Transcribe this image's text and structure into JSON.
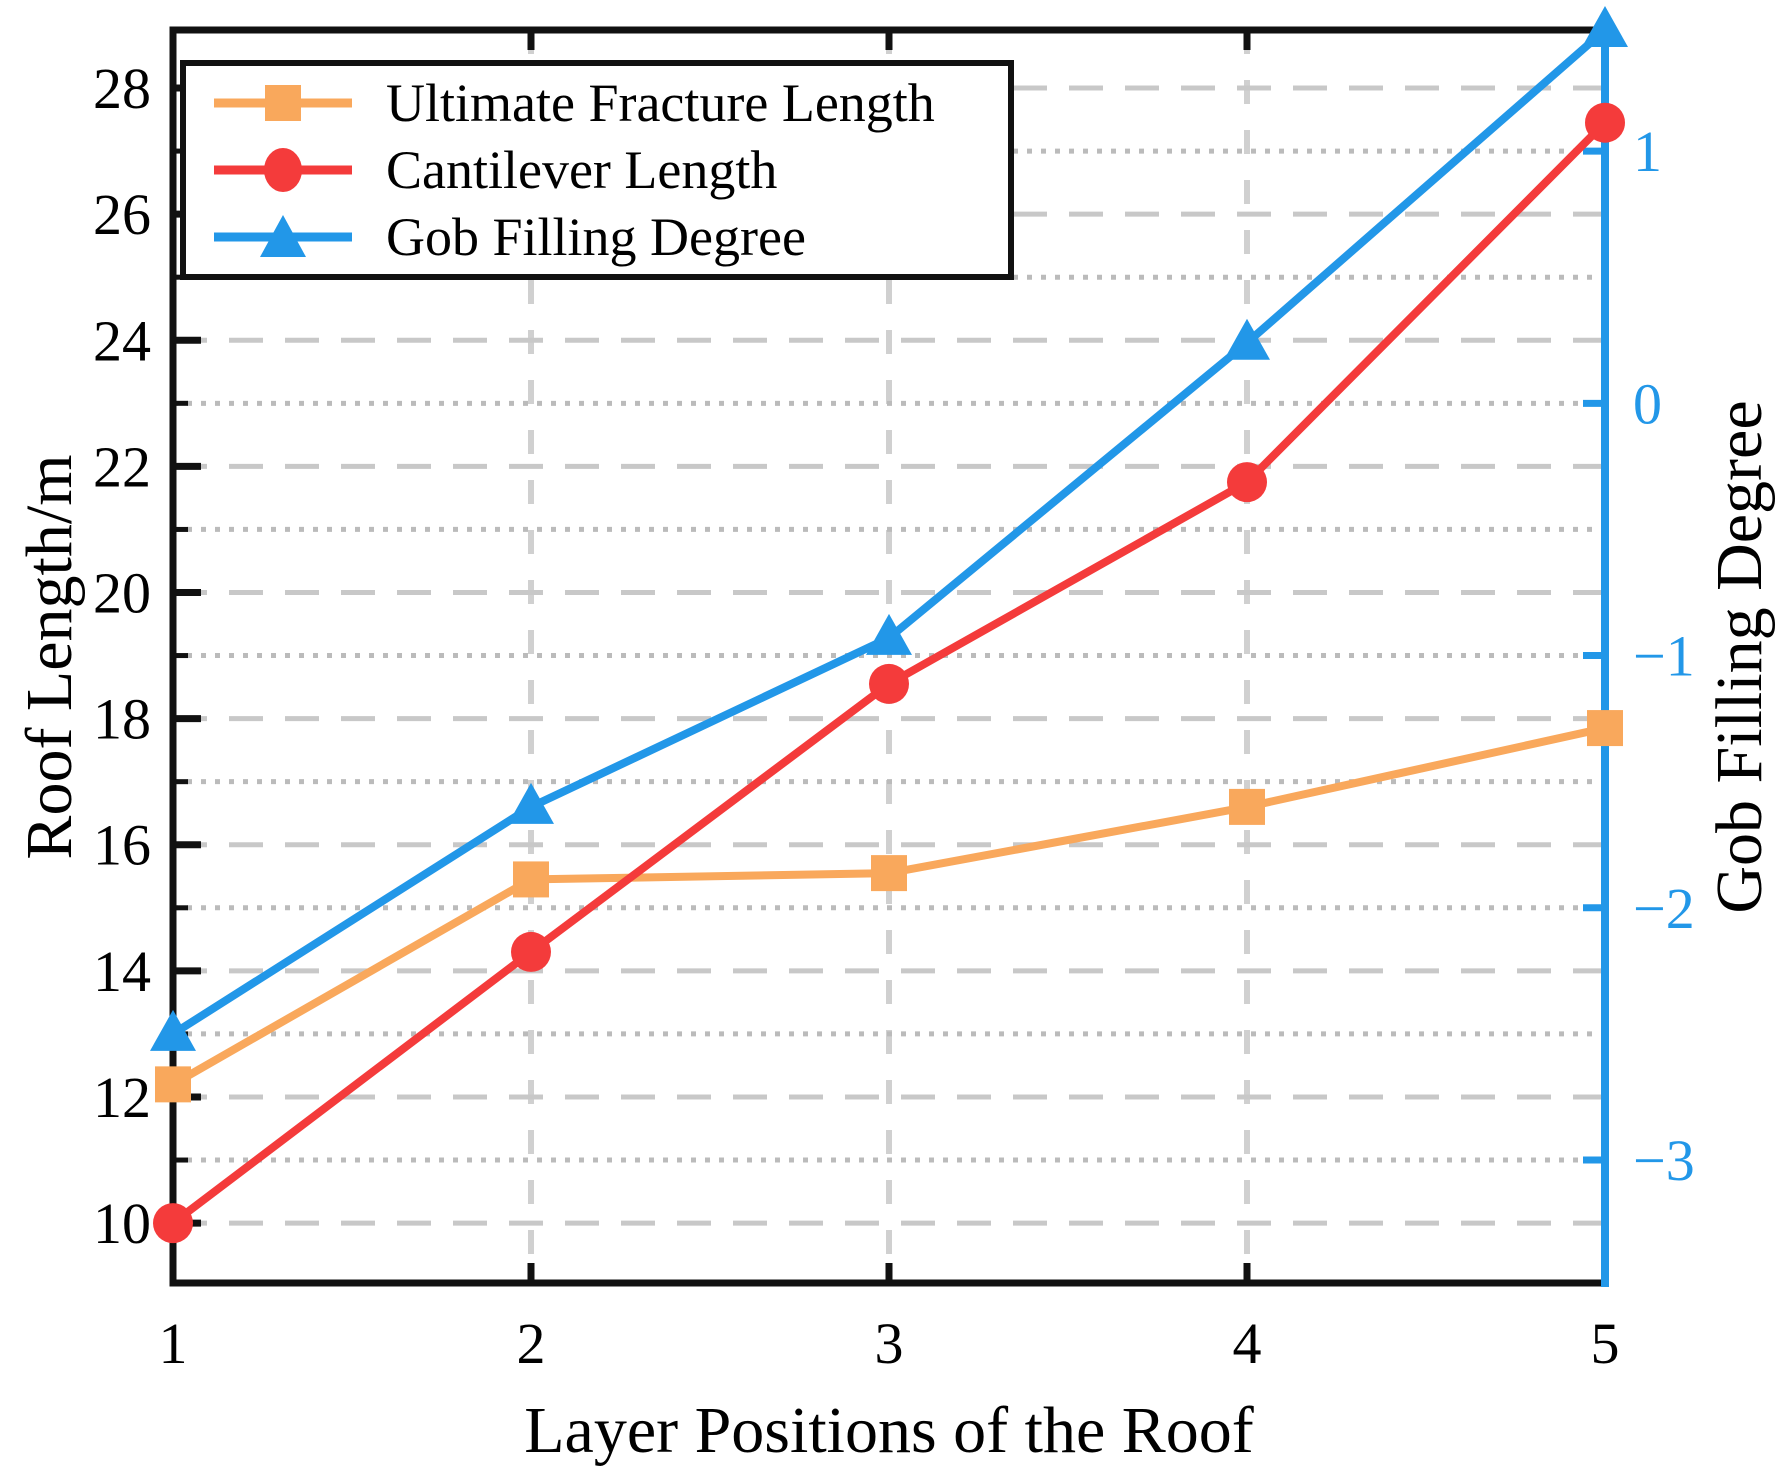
{
  "chart_data": {
    "type": "line",
    "x": [
      1,
      2,
      3,
      4,
      5
    ],
    "x_axis": {
      "label": "Layer Positions of the Roof",
      "ticks": [
        1,
        2,
        3,
        4,
        5
      ],
      "gridline_x": [
        2,
        3,
        4
      ]
    },
    "y_left": {
      "label": "Roof Length/m",
      "range": [
        9.05,
        28.92
      ],
      "major_ticks": [
        10,
        12,
        14,
        16,
        18,
        20,
        22,
        24,
        26,
        28
      ],
      "minor_ticks": [
        11,
        13,
        15,
        17,
        19,
        21,
        23,
        25,
        27
      ]
    },
    "y_right": {
      "label": "Gob Filling Degree",
      "tick_values": [
        1,
        0,
        -1,
        -2,
        -3
      ],
      "tick_labels": [
        "1",
        "0",
        "−1",
        "−2",
        "−3"
      ],
      "left_equiv_offset": 23,
      "left_equiv_scale": 4,
      "axis_color": "#2297E8"
    },
    "series": [
      {
        "name": "Ultimate Fracture Length",
        "axis": "left",
        "marker": "square",
        "color": "#F9A85C",
        "values": [
          12.2,
          15.45,
          15.55,
          16.6,
          17.85
        ]
      },
      {
        "name": "Cantilever Length",
        "axis": "left",
        "marker": "circle",
        "color": "#F43B3B",
        "values": [
          10.0,
          14.3,
          18.55,
          21.75,
          27.45
        ]
      },
      {
        "name": "Gob Filling Degree",
        "axis": "right",
        "marker": "triangle",
        "color": "#2297E8",
        "values": [
          -2.5,
          -1.6,
          -0.93,
          0.24,
          1.48
        ]
      }
    ],
    "grid": {
      "dashed_color": "#C8C8C8",
      "dotted_color": "#BBBBBB",
      "vertical_color": "#D0D0D0",
      "on": true
    },
    "spine_color": "#111111",
    "background": "#FFFFFF",
    "legend_position": "top-left"
  }
}
